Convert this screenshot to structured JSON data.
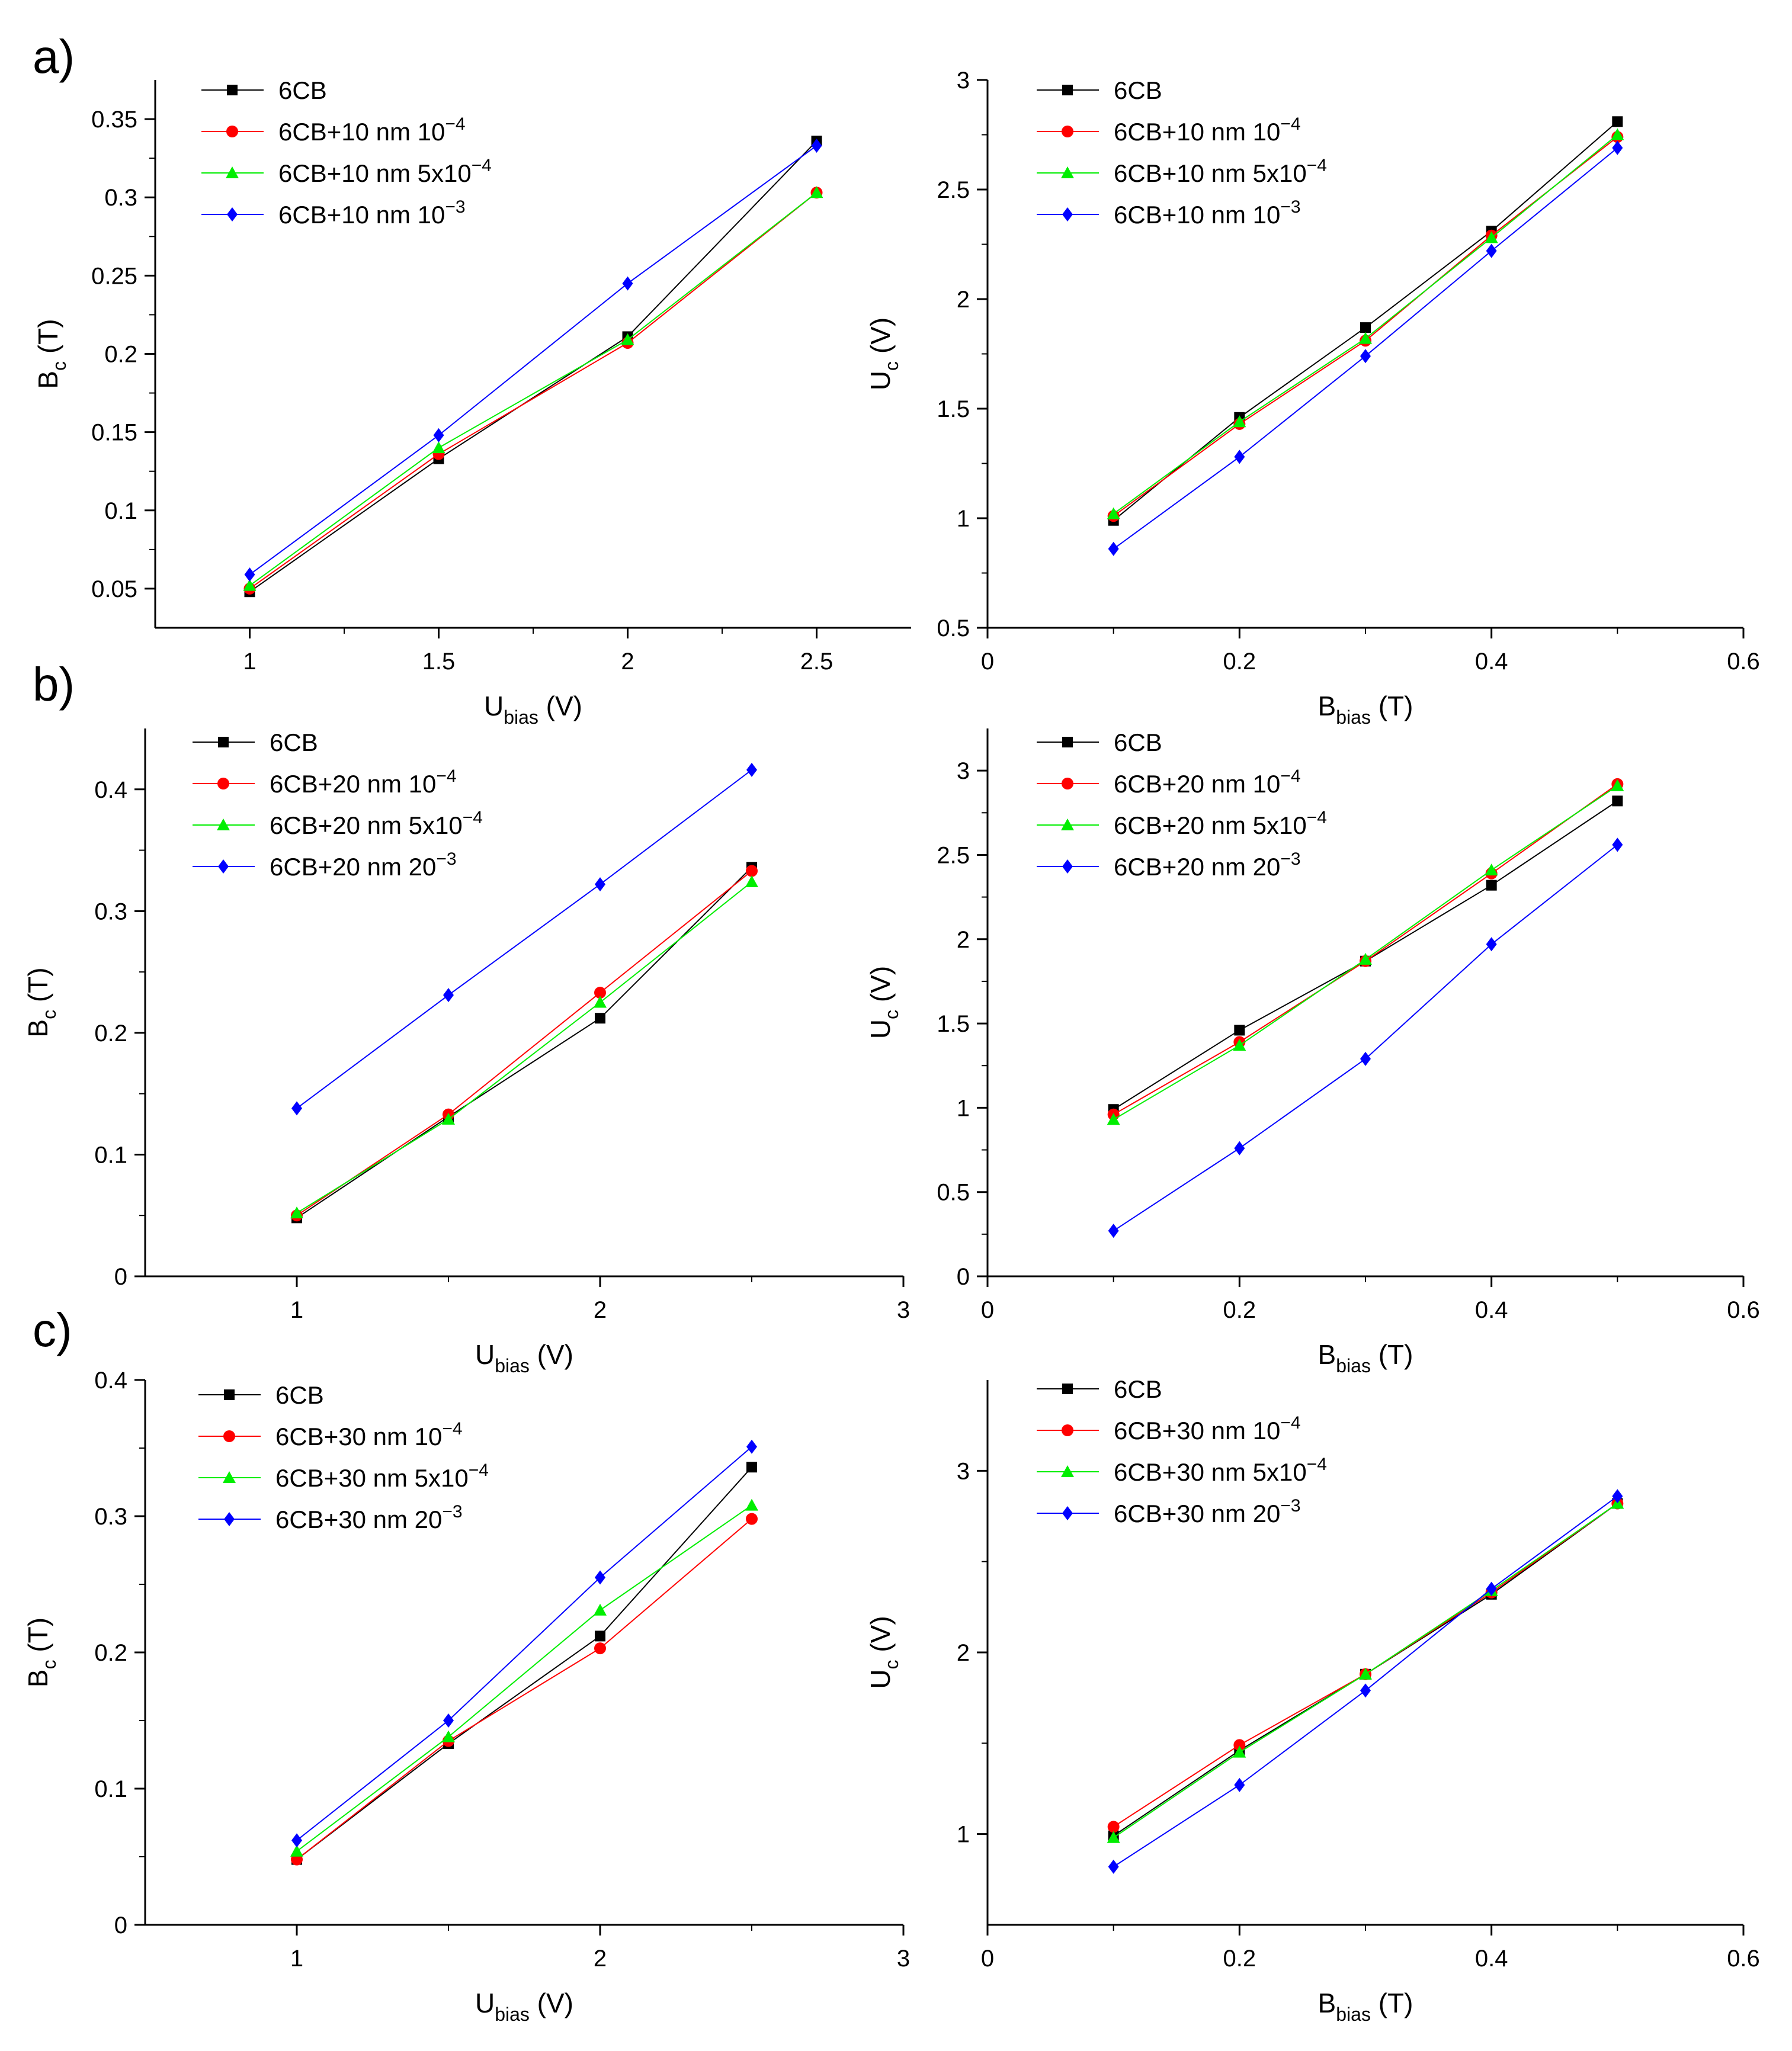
{
  "figure": {
    "panel_labels": [
      "a)",
      "b)",
      "c)"
    ]
  },
  "colors": {
    "6CB": "#000000",
    "1e-4": "#ff0000",
    "5e-4": "#00ee00",
    "1e-3": "#0000ff"
  },
  "chart_data": [
    {
      "id": "a-left",
      "type": "line",
      "xlabel": "U",
      "xlabel_sub": "bias",
      "xlabel_unit": " (V)",
      "ylabel": "B",
      "ylabel_sub": "c",
      "ylabel_unit": " (T)",
      "xlim": [
        0.75,
        2.75
      ],
      "ylim": [
        0.025,
        0.375
      ],
      "xticks": [
        "1",
        "1.5",
        "2",
        "2.5"
      ],
      "xtick_values": [
        1,
        1.5,
        2,
        2.5
      ],
      "yticks": [
        "0.05",
        "0.1",
        "0.15",
        "0.2",
        "0.25",
        "0.3",
        "0.35"
      ],
      "ytick_values": [
        0.05,
        0.1,
        0.15,
        0.2,
        0.25,
        0.3,
        0.35
      ],
      "x": [
        1,
        1.5,
        2,
        2.5
      ],
      "series": [
        {
          "name": "6CB",
          "sup": "",
          "key": "6CB",
          "marker": "square",
          "values": [
            0.048,
            0.133,
            0.211,
            0.336
          ]
        },
        {
          "name": "6CB+10 nm 10",
          "sup": "−4",
          "key": "1e-4",
          "marker": "circle",
          "values": [
            0.05,
            0.136,
            0.207,
            0.303
          ]
        },
        {
          "name": "6CB+10 nm 5x10",
          "sup": "−4",
          "key": "5e-4",
          "marker": "triangle",
          "values": [
            0.052,
            0.14,
            0.209,
            0.303
          ]
        },
        {
          "name": "6CB+10 nm 10",
          "sup": "−3",
          "key": "1e-3",
          "marker": "diamond",
          "values": [
            0.059,
            0.148,
            0.245,
            0.333
          ]
        }
      ]
    },
    {
      "id": "a-right",
      "type": "line",
      "xlabel": "B",
      "xlabel_sub": "bias",
      "xlabel_unit": " (T)",
      "ylabel": "U",
      "ylabel_sub": "c",
      "ylabel_unit": " (V)",
      "xlim": [
        0,
        0.6
      ],
      "ylim": [
        0.5,
        3.0
      ],
      "xticks": [
        "0",
        "0.2",
        "0.4",
        "0.6"
      ],
      "xtick_values": [
        0,
        0.2,
        0.4,
        0.6
      ],
      "yticks": [
        "0.5",
        "1",
        "1.5",
        "2",
        "2.5",
        "3"
      ],
      "ytick_values": [
        0.5,
        1,
        1.5,
        2,
        2.5,
        3
      ],
      "x": [
        0.1,
        0.2,
        0.3,
        0.4,
        0.5
      ],
      "series": [
        {
          "name": "6CB",
          "sup": "",
          "key": "6CB",
          "marker": "square",
          "values": [
            0.99,
            1.46,
            1.87,
            2.31,
            2.81
          ]
        },
        {
          "name": "6CB+10 nm 10",
          "sup": "−4",
          "key": "1e-4",
          "marker": "circle",
          "values": [
            1.01,
            1.43,
            1.81,
            2.29,
            2.74
          ]
        },
        {
          "name": "6CB+10 nm 5x10",
          "sup": "−4",
          "key": "5e-4",
          "marker": "triangle",
          "values": [
            1.02,
            1.44,
            1.82,
            2.28,
            2.75
          ]
        },
        {
          "name": "6CB+10 nm 10",
          "sup": "−3",
          "key": "1e-3",
          "marker": "diamond",
          "values": [
            0.86,
            1.28,
            1.74,
            2.22,
            2.69
          ]
        }
      ]
    },
    {
      "id": "b-left",
      "type": "line",
      "xlabel": "U",
      "xlabel_sub": "bias",
      "xlabel_unit": " (V)",
      "ylabel": "B",
      "ylabel_sub": "c",
      "ylabel_unit": " (T)",
      "xlim": [
        0.5,
        3.0
      ],
      "ylim": [
        0,
        0.45
      ],
      "xticks": [
        "1",
        "2",
        "3"
      ],
      "xtick_values": [
        1,
        2,
        3
      ],
      "yticks": [
        "0",
        "0.1",
        "0.2",
        "0.3",
        "0.4"
      ],
      "ytick_values": [
        0,
        0.1,
        0.2,
        0.3,
        0.4
      ],
      "x": [
        1,
        1.5,
        2,
        2.5
      ],
      "series": [
        {
          "name": "6CB",
          "sup": "",
          "key": "6CB",
          "marker": "square",
          "values": [
            0.048,
            0.131,
            0.212,
            0.336
          ]
        },
        {
          "name": "6CB+20 nm 10",
          "sup": "−4",
          "key": "1e-4",
          "marker": "circle",
          "values": [
            0.05,
            0.133,
            0.233,
            0.333
          ]
        },
        {
          "name": "6CB+20 nm 5x10",
          "sup": "−4",
          "key": "5e-4",
          "marker": "triangle",
          "values": [
            0.052,
            0.129,
            0.225,
            0.324
          ]
        },
        {
          "name": "6CB+20 nm 20",
          "sup": "−3",
          "key": "1e-3",
          "marker": "diamond",
          "values": [
            0.138,
            0.231,
            0.322,
            0.416
          ]
        }
      ]
    },
    {
      "id": "b-right",
      "type": "line",
      "xlabel": "B",
      "xlabel_sub": "bias",
      "xlabel_unit": " (T)",
      "ylabel": "U",
      "ylabel_sub": "c",
      "ylabel_unit": " (V)",
      "xlim": [
        0,
        0.6
      ],
      "ylim": [
        0,
        3.25
      ],
      "xticks": [
        "0",
        "0.2",
        "0.4",
        "0.6"
      ],
      "xtick_values": [
        0,
        0.2,
        0.4,
        0.6
      ],
      "yticks": [
        "0",
        "0.5",
        "1",
        "1.5",
        "2",
        "2.5",
        "3"
      ],
      "ytick_values": [
        0,
        0.5,
        1,
        1.5,
        2,
        2.5,
        3
      ],
      "x": [
        0.1,
        0.2,
        0.3,
        0.4,
        0.5
      ],
      "series": [
        {
          "name": "6CB",
          "sup": "",
          "key": "6CB",
          "marker": "square",
          "values": [
            0.99,
            1.46,
            1.87,
            2.32,
            2.82
          ]
        },
        {
          "name": "6CB+20 nm 10",
          "sup": "−4",
          "key": "1e-4",
          "marker": "circle",
          "values": [
            0.96,
            1.39,
            1.87,
            2.39,
            2.92
          ]
        },
        {
          "name": "6CB+20 nm 5x10",
          "sup": "−4",
          "key": "5e-4",
          "marker": "triangle",
          "values": [
            0.93,
            1.37,
            1.88,
            2.41,
            2.91
          ]
        },
        {
          "name": "6CB+20 nm 20",
          "sup": "−3",
          "key": "1e-3",
          "marker": "diamond",
          "values": [
            0.27,
            0.76,
            1.29,
            1.97,
            2.56
          ]
        }
      ]
    },
    {
      "id": "c-left",
      "type": "line",
      "xlabel": "U",
      "xlabel_sub": "bias",
      "xlabel_unit": " (V)",
      "ylabel": "B",
      "ylabel_sub": "c",
      "ylabel_unit": " (T)",
      "xlim": [
        0.5,
        3.0
      ],
      "ylim": [
        0,
        0.4
      ],
      "xticks": [
        "1",
        "2",
        "3"
      ],
      "xtick_values": [
        1,
        2,
        3
      ],
      "yticks": [
        "0",
        "0.1",
        "0.2",
        "0.3",
        "0.4"
      ],
      "ytick_values": [
        0,
        0.1,
        0.2,
        0.3,
        0.4
      ],
      "x": [
        1,
        1.5,
        2,
        2.5
      ],
      "series": [
        {
          "name": "6CB",
          "sup": "",
          "key": "6CB",
          "marker": "square",
          "values": [
            0.048,
            0.133,
            0.212,
            0.336
          ]
        },
        {
          "name": "6CB+30 nm 10",
          "sup": "−4",
          "key": "1e-4",
          "marker": "circle",
          "values": [
            0.048,
            0.135,
            0.203,
            0.298
          ]
        },
        {
          "name": "6CB+30 nm 5x10",
          "sup": "−4",
          "key": "5e-4",
          "marker": "triangle",
          "values": [
            0.054,
            0.138,
            0.231,
            0.308
          ]
        },
        {
          "name": "6CB+30 nm 20",
          "sup": "−3",
          "key": "1e-3",
          "marker": "diamond",
          "values": [
            0.062,
            0.15,
            0.255,
            0.351
          ]
        }
      ]
    },
    {
      "id": "c-right",
      "type": "line",
      "xlabel": "B",
      "xlabel_sub": "bias",
      "xlabel_unit": " (T)",
      "ylabel": "U",
      "ylabel_sub": "c",
      "ylabel_unit": " (V)",
      "xlim": [
        0,
        0.6
      ],
      "ylim": [
        0.5,
        3.5
      ],
      "xticks": [
        "0",
        "0.2",
        "0.4",
        "0.6"
      ],
      "xtick_values": [
        0,
        0.2,
        0.4,
        0.6
      ],
      "yticks": [
        "1",
        "2",
        "3"
      ],
      "ytick_values": [
        1,
        2,
        3
      ],
      "x": [
        0.1,
        0.2,
        0.3,
        0.4,
        0.5
      ],
      "series": [
        {
          "name": "6CB",
          "sup": "",
          "key": "6CB",
          "marker": "square",
          "values": [
            0.99,
            1.46,
            1.88,
            2.32,
            2.82
          ]
        },
        {
          "name": "6CB+30 nm 10",
          "sup": "−4",
          "key": "1e-4",
          "marker": "circle",
          "values": [
            1.04,
            1.49,
            1.88,
            2.33,
            2.82
          ]
        },
        {
          "name": "6CB+30 nm 5x10",
          "sup": "−4",
          "key": "5e-4",
          "marker": "triangle",
          "values": [
            0.98,
            1.45,
            1.88,
            2.34,
            2.82
          ]
        },
        {
          "name": "6CB+30 nm 20",
          "sup": "−3",
          "key": "1e-3",
          "marker": "diamond",
          "values": [
            0.82,
            1.27,
            1.79,
            2.35,
            2.86
          ]
        }
      ]
    }
  ]
}
